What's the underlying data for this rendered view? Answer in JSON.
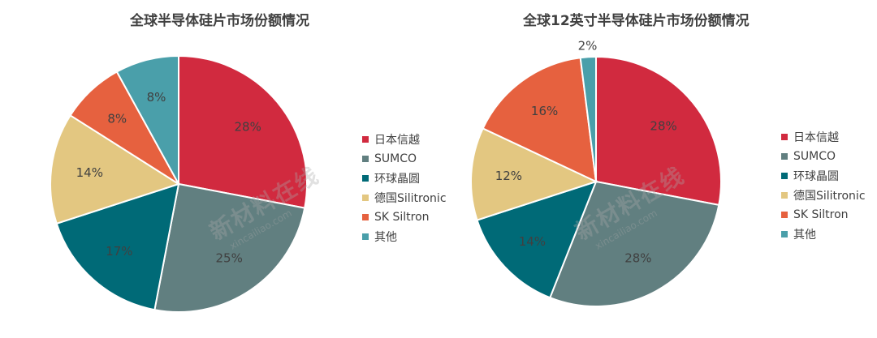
{
  "chart_data": [
    {
      "type": "pie",
      "title": "全球半导体硅片市场份额情况",
      "categories": [
        "日本信越",
        "SUMCO",
        "环球晶圆",
        "德国Silitronic",
        "SK Siltron",
        "其他"
      ],
      "values": [
        28,
        25,
        17,
        14,
        8,
        8
      ],
      "value_labels": [
        "28%",
        "25%",
        "17%",
        "14%",
        "8%",
        "8%"
      ],
      "colors": [
        "#d12a3f",
        "#617f80",
        "#006a77",
        "#e3c781",
        "#e6613f",
        "#4a9faa"
      ],
      "legend": "right"
    },
    {
      "type": "pie",
      "title": "全球12英寸半导体硅片市场份额情况",
      "categories": [
        "日本信越",
        "SUMCO",
        "环球晶圆",
        "德国Silitronic",
        "SK Siltron",
        "其他"
      ],
      "values": [
        28,
        28,
        14,
        12,
        16,
        2
      ],
      "value_labels": [
        "28%",
        "28%",
        "14%",
        "12%",
        "16%",
        "2%"
      ],
      "colors": [
        "#d12a3f",
        "#617f80",
        "#006a77",
        "#e3c781",
        "#e6613f",
        "#4a9faa"
      ],
      "legend": "right"
    }
  ],
  "watermark": {
    "text": "新材料在线",
    "url": "xincailiao.com"
  }
}
